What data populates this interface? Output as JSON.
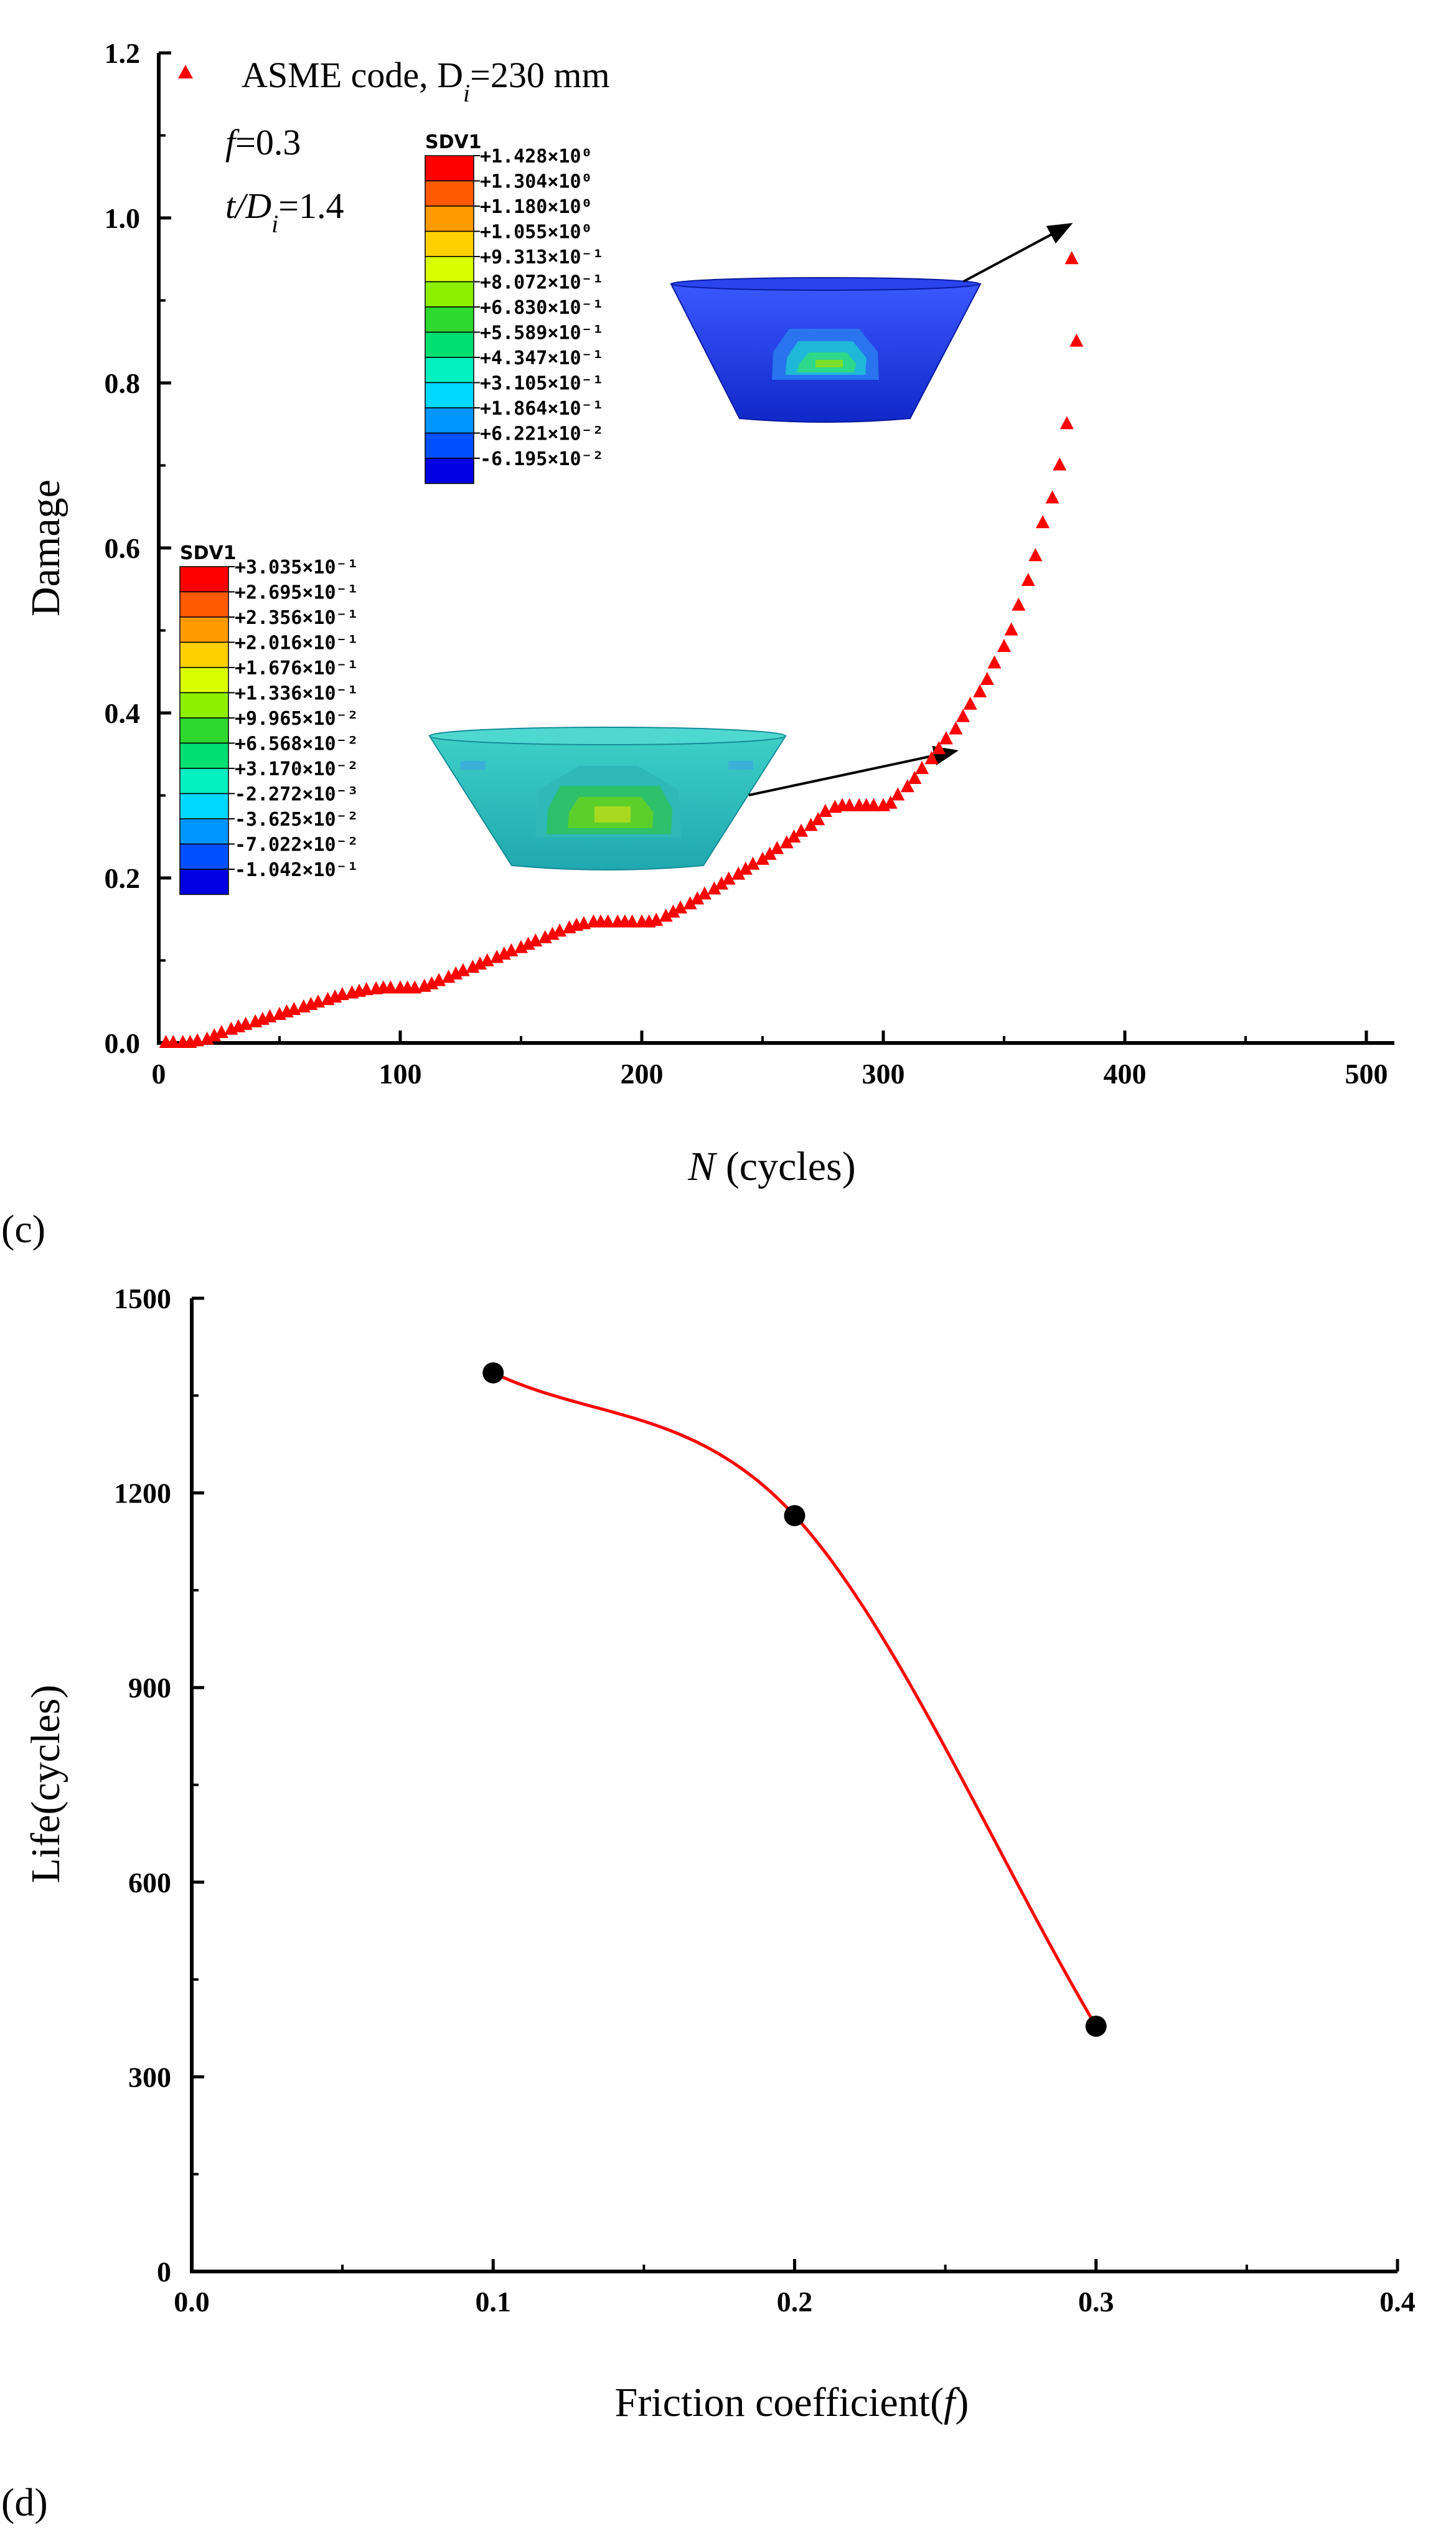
{
  "chart_data": [
    {
      "type": "scatter",
      "panel_label": "",
      "title": "",
      "xlabel": {
        "symbol": "N",
        "rest": " (cycles)"
      },
      "ylabel": "Damage",
      "xlim": [
        0,
        500
      ],
      "ylim": [
        0,
        1.2
      ],
      "xticks": [
        0,
        100,
        200,
        300,
        400,
        500
      ],
      "xtick_labels": [
        "0",
        "100",
        "200",
        "300",
        "400",
        "500"
      ],
      "yticks": [
        0,
        0.2,
        0.4,
        0.6,
        0.8,
        1.0,
        1.2
      ],
      "ytick_labels": [
        "0.0",
        "0.2",
        "0.4",
        "0.6",
        "0.8",
        "1.0",
        "1.2"
      ],
      "legend": {
        "label": "ASME code, D",
        "sub": "i",
        "suffix": "=230 mm",
        "color": "#ff0000",
        "marker": "triangle",
        "placement": "top-left"
      },
      "annotations": {
        "f_symbol": "f",
        "f_value": "=0.3",
        "t_text": "t/D",
        "t_sub": "i",
        "t_value": "=1.4"
      },
      "series": [
        {
          "name": "ASME code",
          "color": "#ff0000",
          "marker": "triangle",
          "x": [
            3,
            6,
            10,
            13,
            16,
            20,
            23,
            26,
            30,
            33,
            36,
            40,
            43,
            46,
            50,
            53,
            56,
            60,
            63,
            66,
            70,
            73,
            76,
            80,
            83,
            86,
            90,
            93,
            96,
            100,
            103,
            106,
            110,
            113,
            116,
            120,
            123,
            126,
            130,
            133,
            136,
            140,
            143,
            146,
            150,
            153,
            156,
            160,
            163,
            166,
            170,
            173,
            176,
            180,
            183,
            186,
            190,
            193,
            196,
            200,
            203,
            206,
            210,
            213,
            216,
            220,
            223,
            226,
            230,
            233,
            236,
            240,
            243,
            246,
            250,
            253,
            256,
            260,
            263,
            266,
            270,
            273,
            276,
            280,
            283,
            286,
            290,
            293,
            296,
            300,
            303,
            306,
            310,
            313,
            316,
            320,
            323,
            326,
            330,
            333,
            336,
            340,
            343,
            346,
            350,
            353,
            356,
            360,
            363,
            366,
            370,
            373,
            376,
            380,
            378
          ],
          "y": [
            0.0,
            0.0,
            0.0,
            0.0,
            0.002,
            0.004,
            0.008,
            0.012,
            0.016,
            0.019,
            0.022,
            0.025,
            0.028,
            0.031,
            0.034,
            0.037,
            0.04,
            0.043,
            0.046,
            0.049,
            0.052,
            0.055,
            0.058,
            0.06,
            0.062,
            0.064,
            0.065,
            0.066,
            0.066,
            0.066,
            0.066,
            0.066,
            0.068,
            0.071,
            0.075,
            0.079,
            0.083,
            0.087,
            0.091,
            0.095,
            0.099,
            0.103,
            0.107,
            0.111,
            0.115,
            0.119,
            0.123,
            0.127,
            0.131,
            0.135,
            0.139,
            0.142,
            0.144,
            0.146,
            0.146,
            0.146,
            0.146,
            0.146,
            0.146,
            0.146,
            0.146,
            0.148,
            0.153,
            0.158,
            0.163,
            0.168,
            0.174,
            0.18,
            0.186,
            0.192,
            0.198,
            0.204,
            0.21,
            0.216,
            0.222,
            0.228,
            0.235,
            0.242,
            0.249,
            0.256,
            0.263,
            0.27,
            0.28,
            0.285,
            0.287,
            0.287,
            0.287,
            0.287,
            0.287,
            0.287,
            0.29,
            0.3,
            0.31,
            0.32,
            0.332,
            0.344,
            0.356,
            0.368,
            0.38,
            0.395,
            0.41,
            0.425,
            0.44,
            0.46,
            0.48,
            0.5,
            0.53,
            0.56,
            0.59,
            0.63,
            0.66,
            0.7,
            0.75,
            0.85,
            0.95
          ]
        }
      ],
      "colorbars": [
        {
          "title": "SDV1",
          "labels": [
            "+1.428×10⁰",
            "+1.304×10⁰",
            "+1.180×10⁰",
            "+1.055×10⁰",
            "+9.313×10⁻¹",
            "+8.072×10⁻¹",
            "+6.830×10⁻¹",
            "+5.589×10⁻¹",
            "+4.347×10⁻¹",
            "+3.105×10⁻¹",
            "+1.864×10⁻¹",
            "+6.221×10⁻²",
            "-6.195×10⁻²"
          ],
          "colors": [
            "#ff0000",
            "#ff5a00",
            "#ff9a00",
            "#ffd000",
            "#d8ff00",
            "#8cf000",
            "#2ed82e",
            "#00e070",
            "#00f0c0",
            "#00d8ff",
            "#0096ff",
            "#0050ff",
            "#0000e0"
          ]
        },
        {
          "title": "SDV1",
          "labels": [
            "+3.035×10⁻¹",
            "+2.695×10⁻¹",
            "+2.356×10⁻¹",
            "+2.016×10⁻¹",
            "+1.676×10⁻¹",
            "+1.336×10⁻¹",
            "+9.965×10⁻²",
            "+6.568×10⁻²",
            "+3.170×10⁻²",
            "-2.272×10⁻³",
            "-3.625×10⁻²",
            "-7.022×10⁻²",
            "-1.042×10⁻¹"
          ],
          "colors": [
            "#ff0000",
            "#ff5a00",
            "#ff9a00",
            "#ffd000",
            "#d8ff00",
            "#8cf000",
            "#2ed82e",
            "#00e070",
            "#00f0c0",
            "#00d8ff",
            "#0096ff",
            "#0050ff",
            "#0000e0"
          ]
        }
      ],
      "insets": [
        "fe-contour-model-end-of-life",
        "fe-contour-model-intermediate"
      ]
    },
    {
      "type": "line",
      "panel_label": "(c)",
      "title": "",
      "xlabel": {
        "text": "Friction coefficient(",
        "symbol": "f",
        "close": ")"
      },
      "ylabel": "Life(cycles)",
      "xlim": [
        0,
        0.4
      ],
      "ylim": [
        0,
        1500
      ],
      "xticks": [
        0,
        0.1,
        0.2,
        0.3,
        0.4
      ],
      "xtick_labels": [
        "0.0",
        "0.1",
        "0.2",
        "0.3",
        "0.4"
      ],
      "yticks": [
        0,
        300,
        600,
        900,
        1200,
        1500
      ],
      "ytick_labels": [
        "0",
        "300",
        "600",
        "900",
        "1200",
        "1500"
      ],
      "series": [
        {
          "name": "Life",
          "line_color": "#ff0000",
          "marker_color": "#000000",
          "x": [
            0.1,
            0.2,
            0.3
          ],
          "y": [
            1385,
            1165,
            378
          ]
        }
      ]
    },
    {
      "type": "label",
      "panel_label": "(d)"
    }
  ]
}
